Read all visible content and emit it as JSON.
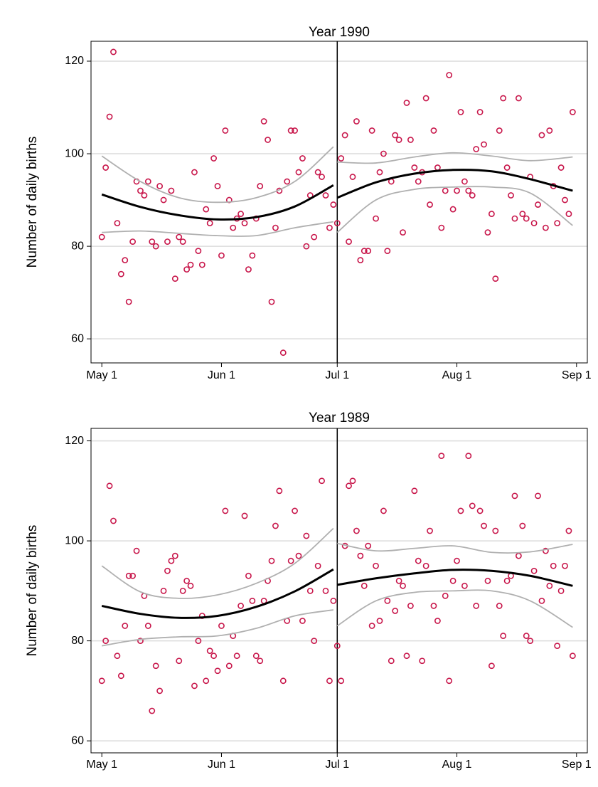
{
  "chart_data": [
    {
      "type": "scatter",
      "title": "Year 1990",
      "y_label": "Number of daily births",
      "x": [
        0,
        1,
        2,
        3,
        4,
        5,
        6,
        7,
        8,
        9,
        10,
        11,
        12,
        13,
        14,
        15,
        16,
        17,
        18,
        19,
        20,
        21,
        22,
        23,
        24,
        25,
        26,
        27,
        28,
        29,
        30,
        31,
        32,
        33,
        34,
        35,
        36,
        37,
        38,
        39,
        40,
        41,
        42,
        43,
        44,
        45,
        46,
        47,
        48,
        49,
        50,
        51,
        52,
        53,
        54,
        55,
        56,
        57,
        58,
        59,
        60,
        61,
        62,
        63,
        64,
        65,
        66,
        67,
        68,
        69,
        70,
        71,
        72,
        73,
        74,
        75,
        76,
        77,
        78,
        79,
        80,
        81,
        82,
        83,
        84,
        85,
        86,
        87,
        88,
        89,
        90,
        91,
        92,
        93,
        94,
        95,
        96,
        97,
        98,
        99,
        100,
        101,
        102,
        103,
        104,
        105,
        106,
        107,
        108,
        109,
        110,
        111,
        112,
        113,
        114,
        115,
        116,
        117,
        118,
        119,
        120,
        121,
        122
      ],
      "values": [
        82,
        97,
        108,
        122,
        85,
        74,
        77,
        68,
        81,
        94,
        92,
        91,
        94,
        81,
        80,
        93,
        90,
        81,
        92,
        73,
        82,
        81,
        75,
        76,
        96,
        79,
        76,
        88,
        85,
        99,
        93,
        78,
        105,
        90,
        84,
        86,
        87,
        85,
        75,
        78,
        86,
        93,
        107,
        103,
        68,
        84,
        92,
        57,
        94,
        105,
        105,
        96,
        99,
        80,
        91,
        82,
        96,
        95,
        91,
        84,
        89,
        85,
        99,
        104,
        81,
        95,
        107,
        77,
        79,
        79,
        105,
        86,
        96,
        100,
        79,
        94,
        104,
        103,
        83,
        111,
        103,
        97,
        94,
        96,
        112,
        89,
        105,
        97,
        84,
        92,
        117,
        88,
        92,
        109,
        94,
        92,
        91,
        101,
        109,
        102,
        83,
        87,
        73,
        105,
        112,
        97,
        91,
        86,
        112,
        87,
        86,
        95,
        85,
        89,
        104,
        84,
        105,
        93,
        85,
        97,
        90,
        87,
        109
      ],
      "color": "#c8174b",
      "lines": [
        {
          "x": [
            0,
            10,
            20,
            30,
            40,
            50,
            60
          ],
          "values": [
            91.2,
            88.5,
            86.7,
            85.8,
            86.3,
            88.6,
            93.2
          ],
          "color": "#000000"
        },
        {
          "x": [
            0,
            10,
            20,
            30,
            40,
            50,
            60
          ],
          "values": [
            99.5,
            94,
            90.5,
            89.5,
            90.5,
            94,
            101.5
          ],
          "color": "#b0b0b0"
        },
        {
          "x": [
            0,
            10,
            20,
            30,
            40,
            50,
            60
          ],
          "values": [
            83,
            83.3,
            82.8,
            82.3,
            82.3,
            84,
            85.3
          ],
          "color": "#b0b0b0"
        },
        {
          "x": [
            61,
            71,
            81,
            91,
            101,
            111,
            122
          ],
          "values": [
            90.5,
            93.8,
            95.7,
            96.5,
            96.2,
            94.5,
            92
          ],
          "color": "#000000"
        },
        {
          "x": [
            61,
            71,
            81,
            91,
            101,
            111,
            122
          ],
          "values": [
            98.2,
            98,
            99.3,
            100.2,
            99.5,
            98.5,
            99.3
          ],
          "color": "#b0b0b0"
        },
        {
          "x": [
            61,
            71,
            81,
            91,
            101,
            111,
            122
          ],
          "values": [
            83,
            90,
            92.3,
            92.8,
            92.8,
            91.5,
            84.5
          ],
          "color": "#b0b0b0"
        }
      ],
      "vline_x": 61,
      "xlim": [
        -2.8,
        125.8
      ],
      "ylim": [
        54.8,
        124.3
      ],
      "xticks": [
        {
          "value": 0,
          "label": "May 1"
        },
        {
          "value": 31,
          "label": "Jun 1"
        },
        {
          "value": 61,
          "label": "Jul 1"
        },
        {
          "value": 92,
          "label": "Aug 1"
        },
        {
          "value": 123,
          "label": "Sep 1"
        }
      ],
      "yticks": [
        60,
        80,
        100,
        120
      ],
      "grid": true
    },
    {
      "type": "scatter",
      "title": "Year 1989",
      "y_label": "Number of daily births",
      "x": [
        0,
        1,
        2,
        3,
        4,
        5,
        6,
        7,
        8,
        9,
        10,
        11,
        12,
        13,
        14,
        15,
        16,
        17,
        18,
        19,
        20,
        21,
        22,
        23,
        24,
        25,
        26,
        27,
        28,
        29,
        30,
        31,
        32,
        33,
        34,
        35,
        36,
        37,
        38,
        39,
        40,
        41,
        42,
        43,
        44,
        45,
        46,
        47,
        48,
        49,
        50,
        51,
        52,
        53,
        54,
        55,
        56,
        57,
        58,
        59,
        60,
        61,
        62,
        63,
        64,
        65,
        66,
        67,
        68,
        69,
        70,
        71,
        72,
        73,
        74,
        75,
        76,
        77,
        78,
        79,
        80,
        81,
        82,
        83,
        84,
        85,
        86,
        87,
        88,
        89,
        90,
        91,
        92,
        93,
        94,
        95,
        96,
        97,
        98,
        99,
        100,
        101,
        102,
        103,
        104,
        105,
        106,
        107,
        108,
        109,
        110,
        111,
        112,
        113,
        114,
        115,
        116,
        117,
        118,
        119,
        120,
        121,
        122
      ],
      "values": [
        72,
        80,
        111,
        104,
        77,
        73,
        83,
        93,
        93,
        98,
        80,
        89,
        83,
        66,
        75,
        70,
        90,
        94,
        96,
        97,
        76,
        90,
        92,
        91,
        71,
        80,
        85,
        72,
        78,
        77,
        74,
        83,
        106,
        75,
        81,
        77,
        87,
        105,
        93,
        88,
        77,
        76,
        88,
        92,
        96,
        103,
        110,
        72,
        84,
        96,
        106,
        97,
        84,
        101,
        90,
        80,
        95,
        112,
        90,
        72,
        88,
        79,
        72,
        99,
        111,
        112,
        102,
        97,
        91,
        99,
        83,
        95,
        84,
        106,
        88,
        76,
        86,
        92,
        91,
        77,
        87,
        110,
        96,
        76,
        95,
        102,
        87,
        84,
        117,
        89,
        72,
        92,
        96,
        106,
        91,
        117,
        107,
        87,
        106,
        103,
        92,
        75,
        102,
        87,
        81,
        92,
        93,
        109,
        97,
        103,
        81,
        80,
        94,
        109,
        88,
        98,
        91,
        95,
        79,
        90,
        95,
        102,
        77
      ],
      "color": "#c8174b",
      "lines": [
        {
          "x": [
            0,
            10,
            20,
            30,
            40,
            50,
            60
          ],
          "values": [
            87,
            85.4,
            84.6,
            85,
            86.8,
            89.9,
            94.3
          ],
          "color": "#000000"
        },
        {
          "x": [
            0,
            10,
            20,
            30,
            40,
            50,
            60
          ],
          "values": [
            95,
            89.8,
            88.5,
            89.2,
            91.5,
            95.5,
            102.5
          ],
          "color": "#b0b0b0"
        },
        {
          "x": [
            0,
            10,
            20,
            30,
            40,
            50,
            60
          ],
          "values": [
            79,
            80.3,
            80.8,
            81,
            82.5,
            85,
            86.2
          ],
          "color": "#b0b0b0"
        },
        {
          "x": [
            61,
            71,
            81,
            91,
            101,
            111,
            122
          ],
          "values": [
            91.2,
            92.5,
            93.5,
            94.2,
            94,
            93,
            91
          ],
          "color": "#000000"
        },
        {
          "x": [
            61,
            71,
            81,
            91,
            101,
            111,
            122
          ],
          "values": [
            99.5,
            98,
            98.5,
            99,
            97.7,
            97.8,
            99.3
          ],
          "color": "#b0b0b0"
        },
        {
          "x": [
            61,
            71,
            81,
            91,
            101,
            111,
            122
          ],
          "values": [
            83,
            88,
            89.7,
            90,
            90,
            88,
            82.7
          ],
          "color": "#b0b0b0"
        }
      ],
      "vline_x": 61,
      "xlim": [
        -2.8,
        125.8
      ],
      "ylim": [
        57.6,
        122.5
      ],
      "xticks": [
        {
          "value": 0,
          "label": "May 1"
        },
        {
          "value": 31,
          "label": "Jun 1"
        },
        {
          "value": 61,
          "label": "Jul 1"
        },
        {
          "value": 92,
          "label": "Aug 1"
        },
        {
          "value": 123,
          "label": "Sep 1"
        }
      ],
      "yticks": [
        60,
        80,
        100,
        120
      ],
      "grid": true
    }
  ]
}
